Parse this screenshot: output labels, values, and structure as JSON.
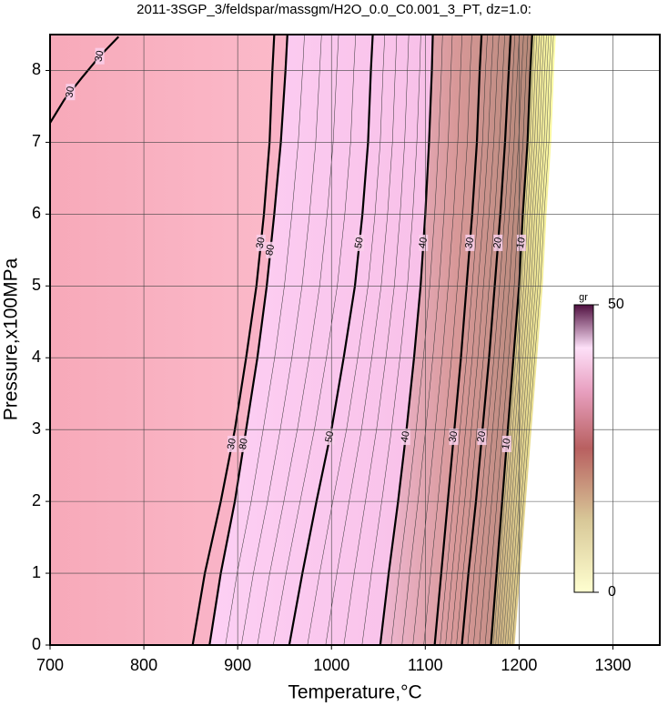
{
  "chart_data": {
    "type": "contour",
    "title": "2011-3SGP_3/feldspar/massgm/H2O_0.0_C0.001_3_PT, dz=1.0:",
    "xlabel": "Temperature,°C",
    "ylabel": "Pressure,x100MPa",
    "xlim": [
      700,
      1350
    ],
    "ylim": [
      0,
      8.5
    ],
    "xticks": [
      700,
      800,
      900,
      1000,
      1100,
      1200,
      1300
    ],
    "yticks": [
      0,
      1,
      2,
      3,
      4,
      5,
      6,
      7,
      8
    ],
    "grid": true,
    "contours": [
      {
        "level": 30,
        "x": [
          852,
          865,
          882,
          897,
          909,
          920,
          928,
          934,
          937,
          939
        ],
        "y": [
          0,
          1,
          2,
          3,
          4,
          5,
          6,
          7,
          8,
          8.5
        ]
      },
      {
        "level": 80,
        "x": [
          870,
          882,
          897,
          909,
          921,
          931,
          939,
          946,
          951,
          953
        ],
        "y": [
          0,
          1,
          2,
          3,
          4,
          5,
          6,
          7,
          8,
          8.5
        ]
      },
      {
        "level": 50,
        "x": [
          955,
          969,
          984,
          1000,
          1013,
          1025,
          1033,
          1039,
          1042,
          1044
        ],
        "y": [
          0,
          1,
          2,
          3,
          4,
          5,
          6,
          7,
          8,
          8.5
        ]
      },
      {
        "level": 40,
        "x": [
          1052,
          1061,
          1071,
          1080,
          1088,
          1095,
          1100,
          1104,
          1107,
          1108
        ],
        "y": [
          0,
          1,
          2,
          3,
          4,
          5,
          6,
          7,
          8,
          8.5
        ]
      },
      {
        "level": 30,
        "x": [
          1110,
          1117,
          1124,
          1131,
          1138,
          1144,
          1150,
          1155,
          1158,
          1160
        ],
        "y": [
          0,
          1,
          2,
          3,
          4,
          5,
          6,
          7,
          8,
          8.5
        ]
      },
      {
        "level": 20,
        "x": [
          1139,
          1146,
          1154,
          1161,
          1168,
          1174,
          1180,
          1185,
          1189,
          1191
        ],
        "y": [
          0,
          1,
          2,
          3,
          4,
          5,
          6,
          7,
          8,
          8.5
        ]
      },
      {
        "level": 10,
        "x": [
          1170,
          1176,
          1182,
          1188,
          1194,
          1200,
          1204,
          1209,
          1212,
          1214
        ],
        "y": [
          0,
          1,
          2,
          3,
          4,
          5,
          6,
          7,
          8,
          8.5
        ]
      },
      {
        "level": 30,
        "x": [
          700,
          715,
          734,
          753,
          773
        ],
        "y": [
          7.27,
          7.59,
          7.9,
          8.2,
          8.47
        ]
      }
    ],
    "colorbar": {
      "label": "gr",
      "lim": [
        0,
        50
      ],
      "ticks": [
        0,
        50
      ]
    }
  }
}
